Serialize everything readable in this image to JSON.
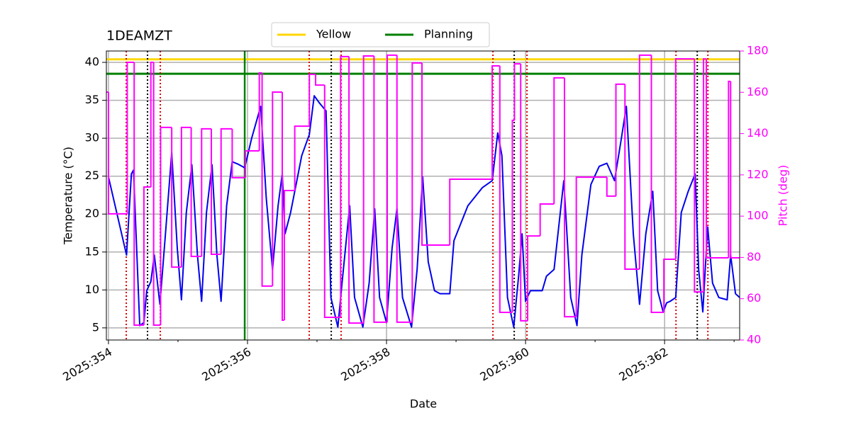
{
  "chart_data": {
    "type": "line",
    "title": "1DEAMZT",
    "xlabel": "Date",
    "ylabel": "Temperature ($^\\circ$C)",
    "y2label": "Pitch (deg)",
    "xlim": [
      353.97,
      363.08
    ],
    "xticks": [
      {
        "value": 354,
        "label": "2025:354"
      },
      {
        "value": 356,
        "label": "2025:356"
      },
      {
        "value": 358,
        "label": "2025:358"
      },
      {
        "value": 360,
        "label": "2025:360"
      },
      {
        "value": 362,
        "label": "2025:362"
      }
    ],
    "xminorticks": [
      355,
      357,
      359,
      361,
      363
    ],
    "ylim": [
      3.4,
      41.5
    ],
    "yticks": [
      5,
      10,
      15,
      20,
      25,
      30,
      35,
      40
    ],
    "y2lim": [
      40,
      180
    ],
    "y2ticks": [
      40,
      60,
      80,
      100,
      120,
      140,
      160,
      180
    ],
    "y2color": "#ff00ff",
    "grid": true,
    "legend": "upper center",
    "hlines": [
      {
        "name": "Yellow",
        "value": 40.4,
        "color": "#ffd700"
      },
      {
        "name": "Planning",
        "value": 38.5,
        "color": "#008000"
      }
    ],
    "vlines": [
      {
        "color": "#008000",
        "style": "solid",
        "x": [
          355.96
        ]
      },
      {
        "color": "#dd0000",
        "style": "dotted",
        "x": [
          354.256,
          354.746,
          356.888,
          357.347,
          359.531,
          360.021,
          362.164,
          362.623
        ]
      },
      {
        "color": "#000000",
        "style": "dotted",
        "x": [
          354.562,
          357.205,
          359.837,
          362.47
        ]
      }
    ],
    "series": [
      {
        "name": "Temperature",
        "color": "#0000ee",
        "drawstyle": "line",
        "x": [
          354.0,
          354.26,
          354.33,
          354.36,
          354.45,
          354.51,
          354.55,
          354.61,
          354.66,
          354.74,
          354.82,
          354.91,
          354.99,
          355.05,
          355.12,
          355.2,
          355.28,
          355.34,
          355.41,
          355.49,
          355.56,
          355.62,
          355.7,
          355.78,
          355.86,
          355.96,
          356.06,
          356.19,
          356.27,
          356.36,
          356.44,
          356.5,
          356.54,
          356.62,
          356.68,
          356.78,
          356.89,
          356.96,
          357.03,
          357.13,
          357.2,
          357.3,
          357.36,
          357.47,
          357.54,
          357.66,
          357.75,
          357.83,
          357.9,
          358.0,
          358.08,
          358.15,
          358.23,
          358.36,
          358.44,
          358.52,
          358.6,
          358.69,
          358.77,
          358.91,
          358.97,
          359.17,
          359.38,
          359.52,
          359.6,
          359.66,
          359.74,
          359.83,
          359.9,
          359.95,
          360.0,
          360.07,
          360.14,
          360.24,
          360.3,
          360.41,
          360.55,
          360.65,
          360.74,
          360.81,
          360.94,
          361.06,
          361.17,
          361.28,
          361.37,
          361.45,
          361.55,
          361.64,
          361.73,
          361.83,
          361.9,
          361.98,
          362.03,
          362.08,
          362.16,
          362.24,
          362.34,
          362.44,
          362.49,
          362.55,
          362.62,
          362.69,
          362.78,
          362.9,
          362.95,
          363.02,
          363.08
        ],
        "values": [
          24.9,
          14.6,
          25.3,
          25.8,
          5.3,
          5.7,
          9.9,
          11.1,
          14.6,
          8.1,
          17.4,
          28.1,
          15.5,
          8.7,
          20.2,
          26.5,
          14.6,
          8.5,
          20.2,
          26.5,
          14.6,
          8.5,
          21.1,
          26.9,
          26.6,
          26.1,
          30.0,
          34.2,
          22.1,
          12.7,
          21.1,
          25.3,
          17.4,
          20.2,
          23.0,
          27.7,
          30.5,
          35.6,
          34.7,
          33.6,
          9.0,
          5.1,
          10.9,
          21.1,
          9.0,
          5.1,
          10.9,
          20.7,
          9.0,
          5.7,
          15.5,
          20.7,
          9.0,
          5.1,
          12.7,
          24.9,
          13.7,
          9.9,
          9.5,
          9.5,
          16.5,
          21.1,
          23.5,
          24.4,
          30.7,
          27.7,
          9.0,
          5.1,
          11.8,
          17.4,
          8.5,
          9.9,
          9.9,
          9.9,
          11.8,
          12.7,
          24.4,
          9.0,
          5.3,
          14.6,
          23.9,
          26.3,
          26.7,
          24.4,
          29.5,
          34.2,
          17.4,
          8.1,
          17.4,
          23.0,
          9.9,
          7.1,
          8.3,
          8.5,
          9.0,
          20.2,
          23.0,
          25.3,
          12.7,
          7.1,
          18.3,
          10.9,
          9.0,
          8.7,
          14.6,
          9.5,
          9.0
        ]
      },
      {
        "name": "Pitch",
        "color": "#ff00ff",
        "axis": "y2",
        "drawstyle": "steps-post",
        "x": [
          353.97,
          354.0,
          354.27,
          354.37,
          354.51,
          354.61,
          354.65,
          354.75,
          354.91,
          355.05,
          355.19,
          355.34,
          355.48,
          355.62,
          355.78,
          355.97,
          356.17,
          356.21,
          356.36,
          356.5,
          356.53,
          356.68,
          356.89,
          356.98,
          357.11,
          357.34,
          357.46,
          357.67,
          357.82,
          358.01,
          358.15,
          358.37,
          358.51,
          358.91,
          359.52,
          359.63,
          359.81,
          359.84,
          359.93,
          360.03,
          360.21,
          360.41,
          360.56,
          360.73,
          361.17,
          361.3,
          361.43,
          361.64,
          361.81,
          361.99,
          362.16,
          362.43,
          362.56,
          362.6,
          362.92,
          362.95,
          363.08
        ],
        "values": [
          160.1,
          101.1,
          174.5,
          47.2,
          114.1,
          174.5,
          47.2,
          143,
          75.3,
          143,
          80.5,
          142.3,
          81.5,
          142.3,
          118.6,
          131.6,
          169.4,
          66.1,
          160.1,
          49.6,
          112.4,
          143.6,
          168.7,
          163.5,
          51,
          177.3,
          48.2,
          177.6,
          48.6,
          178,
          48.6,
          174.2,
          86,
          117.9,
          172.8,
          53.4,
          146.4,
          173.8,
          49.3,
          90.4,
          105.9,
          167,
          51.3,
          118.9,
          109.7,
          163.9,
          74.3,
          178,
          53.4,
          79.1,
          176.2,
          63.3,
          176.2,
          79.8,
          165.3,
          79.8,
          79.8
        ]
      }
    ]
  }
}
